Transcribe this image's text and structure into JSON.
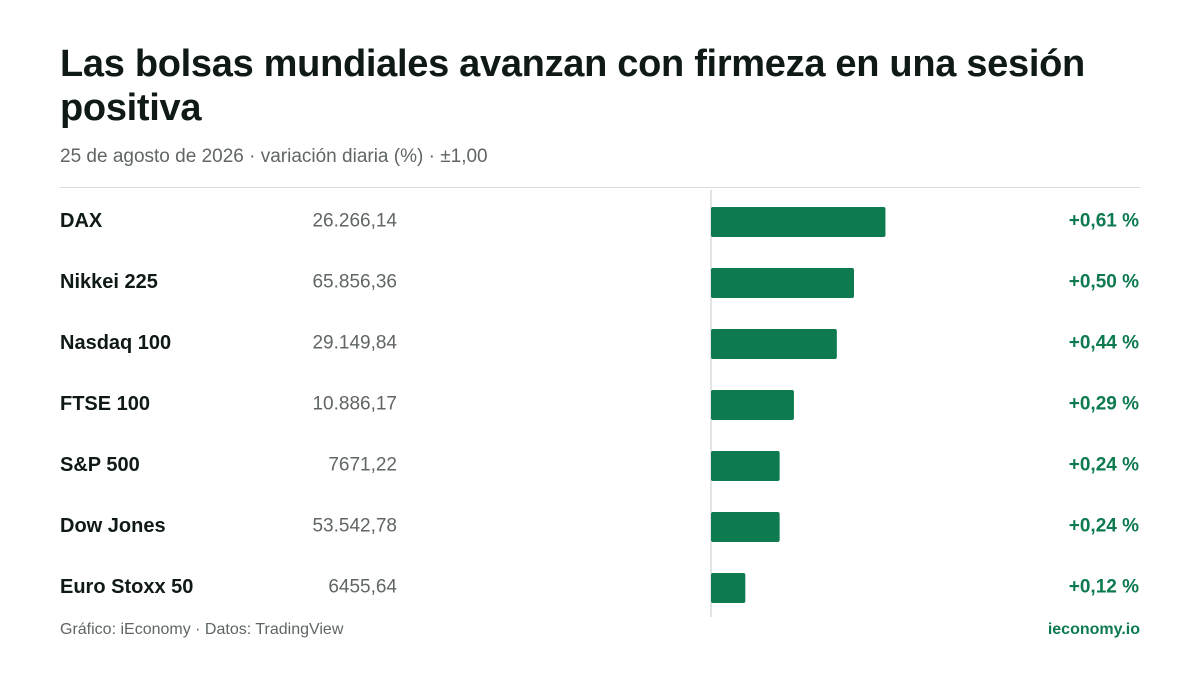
{
  "header": {
    "title": "Las bolsas mundiales avanzan con firmeza en una sesión positiva",
    "subtitle": "25 de agosto de 2026 · variación diaria (%) · ±1,00"
  },
  "footer": {
    "source": "Gráfico: iEconomy · Datos: TradingView",
    "brand": "ieconomy.io"
  },
  "colors": {
    "positive": "#0d7a4f",
    "label": "#0f1a17",
    "value": "#5f6663",
    "axis": "#d9dcdb"
  },
  "chart_data": {
    "type": "bar",
    "orientation": "horizontal",
    "xlim": [
      -1.0,
      1.0
    ],
    "categories": [
      "DAX",
      "Nikkei 225",
      "Nasdaq 100",
      "FTSE 100",
      "S&P 500",
      "Dow Jones",
      "Euro Stoxx 50"
    ],
    "levels": [
      "26.266,14",
      "65.856,36",
      "29.149,84",
      "10.886,17",
      "7671,22",
      "53.542,78",
      "6455,64"
    ],
    "values": [
      0.61,
      0.5,
      0.44,
      0.29,
      0.24,
      0.24,
      0.12
    ],
    "value_labels": [
      "+0,61 %",
      "+0,50 %",
      "+0,44 %",
      "+0,29 %",
      "+0,24 %",
      "+0,24 %",
      "+0,12 %"
    ]
  }
}
